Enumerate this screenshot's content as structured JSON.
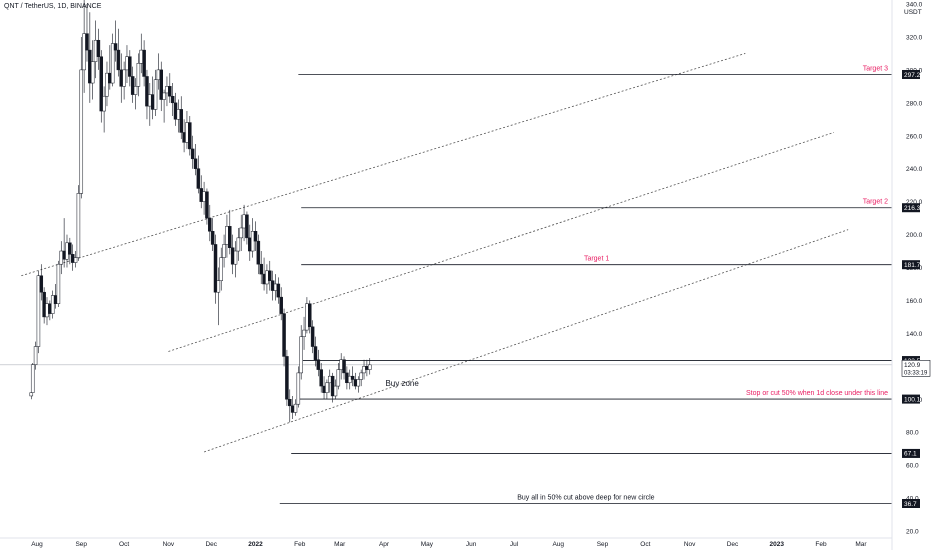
{
  "header": {
    "symbol_line": "QNT / TetherUS, 1D, BINANCE"
  },
  "price_axis": {
    "currency": "USDT"
  },
  "chart_data": {
    "type": "candlestick",
    "x": [
      "Aug",
      "Sep",
      "Oct",
      "Nov",
      "Dec",
      "2022",
      "Feb",
      "Mar",
      "Apr",
      "May",
      "Jun",
      "Jul",
      "Aug",
      "Sep",
      "Oct",
      "Nov",
      "Dec",
      "2023",
      "Feb",
      "Mar"
    ],
    "ylim": [
      20,
      340
    ],
    "y_ticks": [
      20.0,
      40.0,
      60.0,
      80.0,
      100.0,
      120.0,
      140.0,
      160.0,
      180.0,
      200.0,
      220.0,
      240.0,
      260.0,
      280.0,
      300.0,
      320.0,
      340.0
    ],
    "y_tick_labels": [
      "20.0",
      "40.0",
      "60.0",
      "80.0",
      "100.0",
      "120.0",
      "140.0",
      "160.0",
      "180.0",
      "200.0",
      "220.0",
      "240.0",
      "260.0",
      "280.0",
      "300.0",
      "320.0",
      "340.0"
    ],
    "colors": {
      "candle_up": "#ffffff",
      "candle_down": "#131722",
      "channel": "#555555",
      "level": "#131722",
      "annotation": "#e91e63"
    },
    "candles": [
      {
        "x": "2021-07-28",
        "high": 104,
        "low": 100,
        "open": 102,
        "close": 104
      },
      {
        "x": "2021-07-29",
        "high": 122,
        "low": 104,
        "open": 104,
        "close": 121
      },
      {
        "x": "2021-07-31",
        "high": 135,
        "low": 118,
        "open": 121,
        "close": 132
      },
      {
        "x": "2021-08-02",
        "high": 178,
        "low": 128,
        "open": 132,
        "close": 175
      },
      {
        "x": "2021-08-04",
        "high": 182,
        "low": 160,
        "open": 175,
        "close": 165
      },
      {
        "x": "2021-08-06",
        "high": 168,
        "low": 146,
        "open": 165,
        "close": 150
      },
      {
        "x": "2021-08-08",
        "high": 162,
        "low": 145,
        "open": 150,
        "close": 158
      },
      {
        "x": "2021-08-10",
        "high": 160,
        "low": 148,
        "open": 158,
        "close": 152
      },
      {
        "x": "2021-08-12",
        "high": 166,
        "low": 149,
        "open": 152,
        "close": 163
      },
      {
        "x": "2021-08-14",
        "high": 170,
        "low": 155,
        "open": 163,
        "close": 158
      },
      {
        "x": "2021-08-16",
        "high": 184,
        "low": 156,
        "open": 158,
        "close": 182
      },
      {
        "x": "2021-08-18",
        "high": 196,
        "low": 176,
        "open": 182,
        "close": 190
      },
      {
        "x": "2021-08-20",
        "high": 210,
        "low": 180,
        "open": 190,
        "close": 185
      },
      {
        "x": "2021-08-22",
        "high": 200,
        "low": 180,
        "open": 185,
        "close": 195
      },
      {
        "x": "2021-08-24",
        "high": 198,
        "low": 182,
        "open": 195,
        "close": 188
      },
      {
        "x": "2021-08-26",
        "high": 194,
        "low": 178,
        "open": 188,
        "close": 183
      },
      {
        "x": "2021-08-28",
        "high": 190,
        "low": 180,
        "open": 183,
        "close": 186
      },
      {
        "x": "2021-08-30",
        "high": 230,
        "low": 184,
        "open": 186,
        "close": 225
      },
      {
        "x": "2021-09-01",
        "high": 320,
        "low": 222,
        "open": 225,
        "close": 300
      },
      {
        "x": "2021-09-03",
        "high": 345,
        "low": 286,
        "open": 300,
        "close": 322
      },
      {
        "x": "2021-09-05",
        "high": 340,
        "low": 305,
        "open": 322,
        "close": 312
      },
      {
        "x": "2021-09-07",
        "high": 335,
        "low": 280,
        "open": 312,
        "close": 292
      },
      {
        "x": "2021-09-09",
        "high": 318,
        "low": 282,
        "open": 292,
        "close": 305
      },
      {
        "x": "2021-09-11",
        "high": 330,
        "low": 295,
        "open": 305,
        "close": 318
      },
      {
        "x": "2021-09-13",
        "high": 325,
        "low": 300,
        "open": 318,
        "close": 308
      },
      {
        "x": "2021-09-15",
        "high": 312,
        "low": 268,
        "open": 308,
        "close": 275
      },
      {
        "x": "2021-09-17",
        "high": 290,
        "low": 262,
        "open": 275,
        "close": 284
      },
      {
        "x": "2021-09-19",
        "high": 305,
        "low": 278,
        "open": 284,
        "close": 298
      },
      {
        "x": "2021-09-21",
        "high": 315,
        "low": 288,
        "open": 298,
        "close": 292
      },
      {
        "x": "2021-09-23",
        "high": 322,
        "low": 290,
        "open": 292,
        "close": 316
      },
      {
        "x": "2021-09-25",
        "high": 330,
        "low": 305,
        "open": 316,
        "close": 312
      },
      {
        "x": "2021-09-27",
        "high": 325,
        "low": 296,
        "open": 312,
        "close": 300
      },
      {
        "x": "2021-09-29",
        "high": 310,
        "low": 280,
        "open": 300,
        "close": 290
      },
      {
        "x": "2021-10-01",
        "high": 305,
        "low": 282,
        "open": 290,
        "close": 300
      },
      {
        "x": "2021-10-03",
        "high": 315,
        "low": 292,
        "open": 300,
        "close": 308
      },
      {
        "x": "2021-10-05",
        "high": 312,
        "low": 290,
        "open": 308,
        "close": 296
      },
      {
        "x": "2021-10-07",
        "high": 302,
        "low": 280,
        "open": 296,
        "close": 285
      },
      {
        "x": "2021-10-09",
        "high": 295,
        "low": 276,
        "open": 285,
        "close": 290
      },
      {
        "x": "2021-10-11",
        "high": 310,
        "low": 284,
        "open": 290,
        "close": 304
      },
      {
        "x": "2021-10-13",
        "high": 322,
        "low": 298,
        "open": 304,
        "close": 312
      },
      {
        "x": "2021-10-15",
        "high": 318,
        "low": 290,
        "open": 312,
        "close": 296
      },
      {
        "x": "2021-10-17",
        "high": 300,
        "low": 270,
        "open": 296,
        "close": 278
      },
      {
        "x": "2021-10-19",
        "high": 292,
        "low": 266,
        "open": 278,
        "close": 285
      },
      {
        "x": "2021-10-21",
        "high": 296,
        "low": 270,
        "open": 285,
        "close": 276
      },
      {
        "x": "2021-10-23",
        "high": 300,
        "low": 272,
        "open": 276,
        "close": 294
      },
      {
        "x": "2021-10-25",
        "high": 310,
        "low": 288,
        "open": 294,
        "close": 300
      },
      {
        "x": "2021-10-27",
        "high": 305,
        "low": 275,
        "open": 300,
        "close": 282
      },
      {
        "x": "2021-10-29",
        "high": 288,
        "low": 268,
        "open": 282,
        "close": 286
      },
      {
        "x": "2021-10-31",
        "high": 296,
        "low": 278,
        "open": 286,
        "close": 290
      },
      {
        "x": "2021-11-02",
        "high": 298,
        "low": 280,
        "open": 290,
        "close": 284
      },
      {
        "x": "2021-11-04",
        "high": 292,
        "low": 272,
        "open": 284,
        "close": 280
      },
      {
        "x": "2021-11-06",
        "high": 286,
        "low": 266,
        "open": 280,
        "close": 270
      },
      {
        "x": "2021-11-08",
        "high": 282,
        "low": 262,
        "open": 270,
        "close": 276
      },
      {
        "x": "2021-11-10",
        "high": 284,
        "low": 258,
        "open": 276,
        "close": 262
      },
      {
        "x": "2021-11-12",
        "high": 270,
        "low": 250,
        "open": 262,
        "close": 256
      },
      {
        "x": "2021-11-14",
        "high": 275,
        "low": 252,
        "open": 256,
        "close": 268
      },
      {
        "x": "2021-11-16",
        "high": 272,
        "low": 248,
        "open": 268,
        "close": 252
      },
      {
        "x": "2021-11-18",
        "high": 260,
        "low": 240,
        "open": 252,
        "close": 246
      },
      {
        "x": "2021-11-20",
        "high": 255,
        "low": 236,
        "open": 246,
        "close": 240
      },
      {
        "x": "2021-11-22",
        "high": 248,
        "low": 225,
        "open": 240,
        "close": 228
      },
      {
        "x": "2021-11-24",
        "high": 236,
        "low": 216,
        "open": 228,
        "close": 220
      },
      {
        "x": "2021-11-26",
        "high": 232,
        "low": 212,
        "open": 220,
        "close": 226
      },
      {
        "x": "2021-11-28",
        "high": 228,
        "low": 206,
        "open": 226,
        "close": 210
      },
      {
        "x": "2021-11-30",
        "high": 218,
        "low": 196,
        "open": 210,
        "close": 202
      },
      {
        "x": "2021-12-02",
        "high": 210,
        "low": 190,
        "open": 202,
        "close": 194
      },
      {
        "x": "2021-12-04",
        "high": 200,
        "low": 158,
        "open": 194,
        "close": 165
      },
      {
        "x": "2021-12-06",
        "high": 180,
        "low": 145,
        "open": 165,
        "close": 172
      },
      {
        "x": "2021-12-08",
        "high": 192,
        "low": 166,
        "open": 172,
        "close": 186
      },
      {
        "x": "2021-12-10",
        "high": 200,
        "low": 180,
        "open": 186,
        "close": 194
      },
      {
        "x": "2021-12-12",
        "high": 212,
        "low": 186,
        "open": 194,
        "close": 205
      },
      {
        "x": "2021-12-14",
        "high": 215,
        "low": 188,
        "open": 205,
        "close": 192
      },
      {
        "x": "2021-12-16",
        "high": 200,
        "low": 176,
        "open": 192,
        "close": 182
      },
      {
        "x": "2021-12-18",
        "high": 196,
        "low": 174,
        "open": 182,
        "close": 190
      },
      {
        "x": "2021-12-20",
        "high": 204,
        "low": 184,
        "open": 190,
        "close": 198
      },
      {
        "x": "2021-12-22",
        "high": 212,
        "low": 190,
        "open": 198,
        "close": 204
      },
      {
        "x": "2021-12-24",
        "high": 218,
        "low": 196,
        "open": 204,
        "close": 212
      },
      {
        "x": "2021-12-26",
        "high": 214,
        "low": 194,
        "open": 212,
        "close": 198
      },
      {
        "x": "2021-12-28",
        "high": 206,
        "low": 184,
        "open": 198,
        "close": 190
      },
      {
        "x": "2021-12-30",
        "high": 210,
        "low": 186,
        "open": 190,
        "close": 202
      },
      {
        "x": "2022-01-01",
        "high": 208,
        "low": 190,
        "open": 202,
        "close": 196
      },
      {
        "x": "2022-01-03",
        "high": 200,
        "low": 176,
        "open": 196,
        "close": 182
      },
      {
        "x": "2022-01-05",
        "high": 190,
        "low": 170,
        "open": 182,
        "close": 176
      },
      {
        "x": "2022-01-07",
        "high": 186,
        "low": 166,
        "open": 176,
        "close": 170
      },
      {
        "x": "2022-01-09",
        "high": 182,
        "low": 164,
        "open": 170,
        "close": 178
      },
      {
        "x": "2022-01-11",
        "high": 184,
        "low": 166,
        "open": 178,
        "close": 172
      },
      {
        "x": "2022-01-13",
        "high": 178,
        "low": 160,
        "open": 172,
        "close": 166
      },
      {
        "x": "2022-01-15",
        "high": 176,
        "low": 160,
        "open": 166,
        "close": 170
      },
      {
        "x": "2022-01-17",
        "high": 174,
        "low": 158,
        "open": 170,
        "close": 162
      },
      {
        "x": "2022-01-19",
        "high": 168,
        "low": 148,
        "open": 162,
        "close": 152
      },
      {
        "x": "2022-01-21",
        "high": 155,
        "low": 120,
        "open": 152,
        "close": 126
      },
      {
        "x": "2022-01-23",
        "high": 130,
        "low": 96,
        "open": 126,
        "close": 100
      },
      {
        "x": "2022-01-25",
        "high": 106,
        "low": 86,
        "open": 100,
        "close": 96
      },
      {
        "x": "2022-01-27",
        "high": 102,
        "low": 88,
        "open": 96,
        "close": 92
      },
      {
        "x": "2022-01-29",
        "high": 100,
        "low": 90,
        "open": 92,
        "close": 97
      },
      {
        "x": "2022-01-31",
        "high": 120,
        "low": 95,
        "open": 97,
        "close": 116
      },
      {
        "x": "2022-02-02",
        "high": 145,
        "low": 112,
        "open": 116,
        "close": 138
      },
      {
        "x": "2022-02-04",
        "high": 150,
        "low": 130,
        "open": 138,
        "close": 142
      },
      {
        "x": "2022-02-06",
        "high": 162,
        "low": 140,
        "open": 142,
        "close": 158
      },
      {
        "x": "2022-02-08",
        "high": 160,
        "low": 140,
        "open": 158,
        "close": 144
      },
      {
        "x": "2022-02-10",
        "high": 148,
        "low": 128,
        "open": 144,
        "close": 132
      },
      {
        "x": "2022-02-12",
        "high": 138,
        "low": 120,
        "open": 132,
        "close": 124
      },
      {
        "x": "2022-02-14",
        "high": 130,
        "low": 114,
        "open": 124,
        "close": 118
      },
      {
        "x": "2022-02-16",
        "high": 122,
        "low": 104,
        "open": 118,
        "close": 108
      },
      {
        "x": "2022-02-18",
        "high": 114,
        "low": 100,
        "open": 108,
        "close": 104
      },
      {
        "x": "2022-02-20",
        "high": 112,
        "low": 100,
        "open": 104,
        "close": 110
      },
      {
        "x": "2022-02-22",
        "high": 118,
        "low": 104,
        "open": 110,
        "close": 114
      },
      {
        "x": "2022-02-24",
        "high": 116,
        "low": 98,
        "open": 114,
        "close": 102
      },
      {
        "x": "2022-02-26",
        "high": 112,
        "low": 100,
        "open": 102,
        "close": 108
      },
      {
        "x": "2022-02-28",
        "high": 122,
        "low": 106,
        "open": 108,
        "close": 118
      },
      {
        "x": "2022-03-02",
        "high": 128,
        "low": 112,
        "open": 118,
        "close": 124
      },
      {
        "x": "2022-03-04",
        "high": 126,
        "low": 112,
        "open": 124,
        "close": 116
      },
      {
        "x": "2022-03-06",
        "high": 120,
        "low": 106,
        "open": 116,
        "close": 110
      },
      {
        "x": "2022-03-08",
        "high": 118,
        "low": 106,
        "open": 110,
        "close": 114
      },
      {
        "x": "2022-03-10",
        "high": 120,
        "low": 108,
        "open": 114,
        "close": 112
      },
      {
        "x": "2022-03-12",
        "high": 116,
        "low": 106,
        "open": 112,
        "close": 108
      },
      {
        "x": "2022-03-14",
        "high": 114,
        "low": 104,
        "open": 108,
        "close": 112
      },
      {
        "x": "2022-03-16",
        "high": 118,
        "low": 108,
        "open": 112,
        "close": 116
      },
      {
        "x": "2022-03-18",
        "high": 124,
        "low": 112,
        "open": 116,
        "close": 120
      },
      {
        "x": "2022-03-20",
        "high": 124,
        "low": 114,
        "open": 120,
        "close": 118
      },
      {
        "x": "2022-03-22",
        "high": 125,
        "low": 115,
        "open": 118,
        "close": 120.9
      }
    ],
    "channels": [
      {
        "from": {
          "x": "2021-07-21",
          "y": 175
        },
        "to": {
          "x": "2022-12-10",
          "y": 310
        }
      },
      {
        "from": {
          "x": "2021-11-01",
          "y": 129
        },
        "to": {
          "x": "2023-02-10",
          "y": 262
        }
      },
      {
        "from": {
          "x": "2021-11-26",
          "y": 68
        },
        "to": {
          "x": "2023-02-20",
          "y": 203
        }
      }
    ],
    "levels": [
      {
        "value": 297.2,
        "from": "2022-01-31",
        "label": "297.2",
        "note": "Target 3",
        "note_pos": "right"
      },
      {
        "value": 216.3,
        "from": "2022-02-02",
        "label": "216.3",
        "note": "Target 2",
        "note_pos": "right"
      },
      {
        "value": 181.7,
        "from": "2022-02-02",
        "label": "181.7",
        "note": "Target 1",
        "note_pos": "center"
      },
      {
        "value": 123.5,
        "from": "2022-02-02",
        "label": "123.5",
        "note": "",
        "note_pos": "right"
      },
      {
        "value": 100.1,
        "from": "2022-01-30",
        "label": "100.1",
        "note": "Stop or cut 50% when 1d close under this line",
        "note_pos": "right"
      },
      {
        "value": 67.1,
        "from": "2022-01-26",
        "label": "67.1",
        "note": "",
        "note_pos": "right"
      },
      {
        "value": 36.7,
        "from": "2022-01-18",
        "label": "36.7",
        "note": "Buy all in 50% cut above deep for new circle",
        "note_pos": "center"
      }
    ],
    "buy_zone": {
      "text": "Buy zone",
      "x": "2022-04-02",
      "y": 108
    },
    "last_price": {
      "value": 120.9,
      "label": "120.9",
      "countdown": "03:33:19"
    }
  }
}
